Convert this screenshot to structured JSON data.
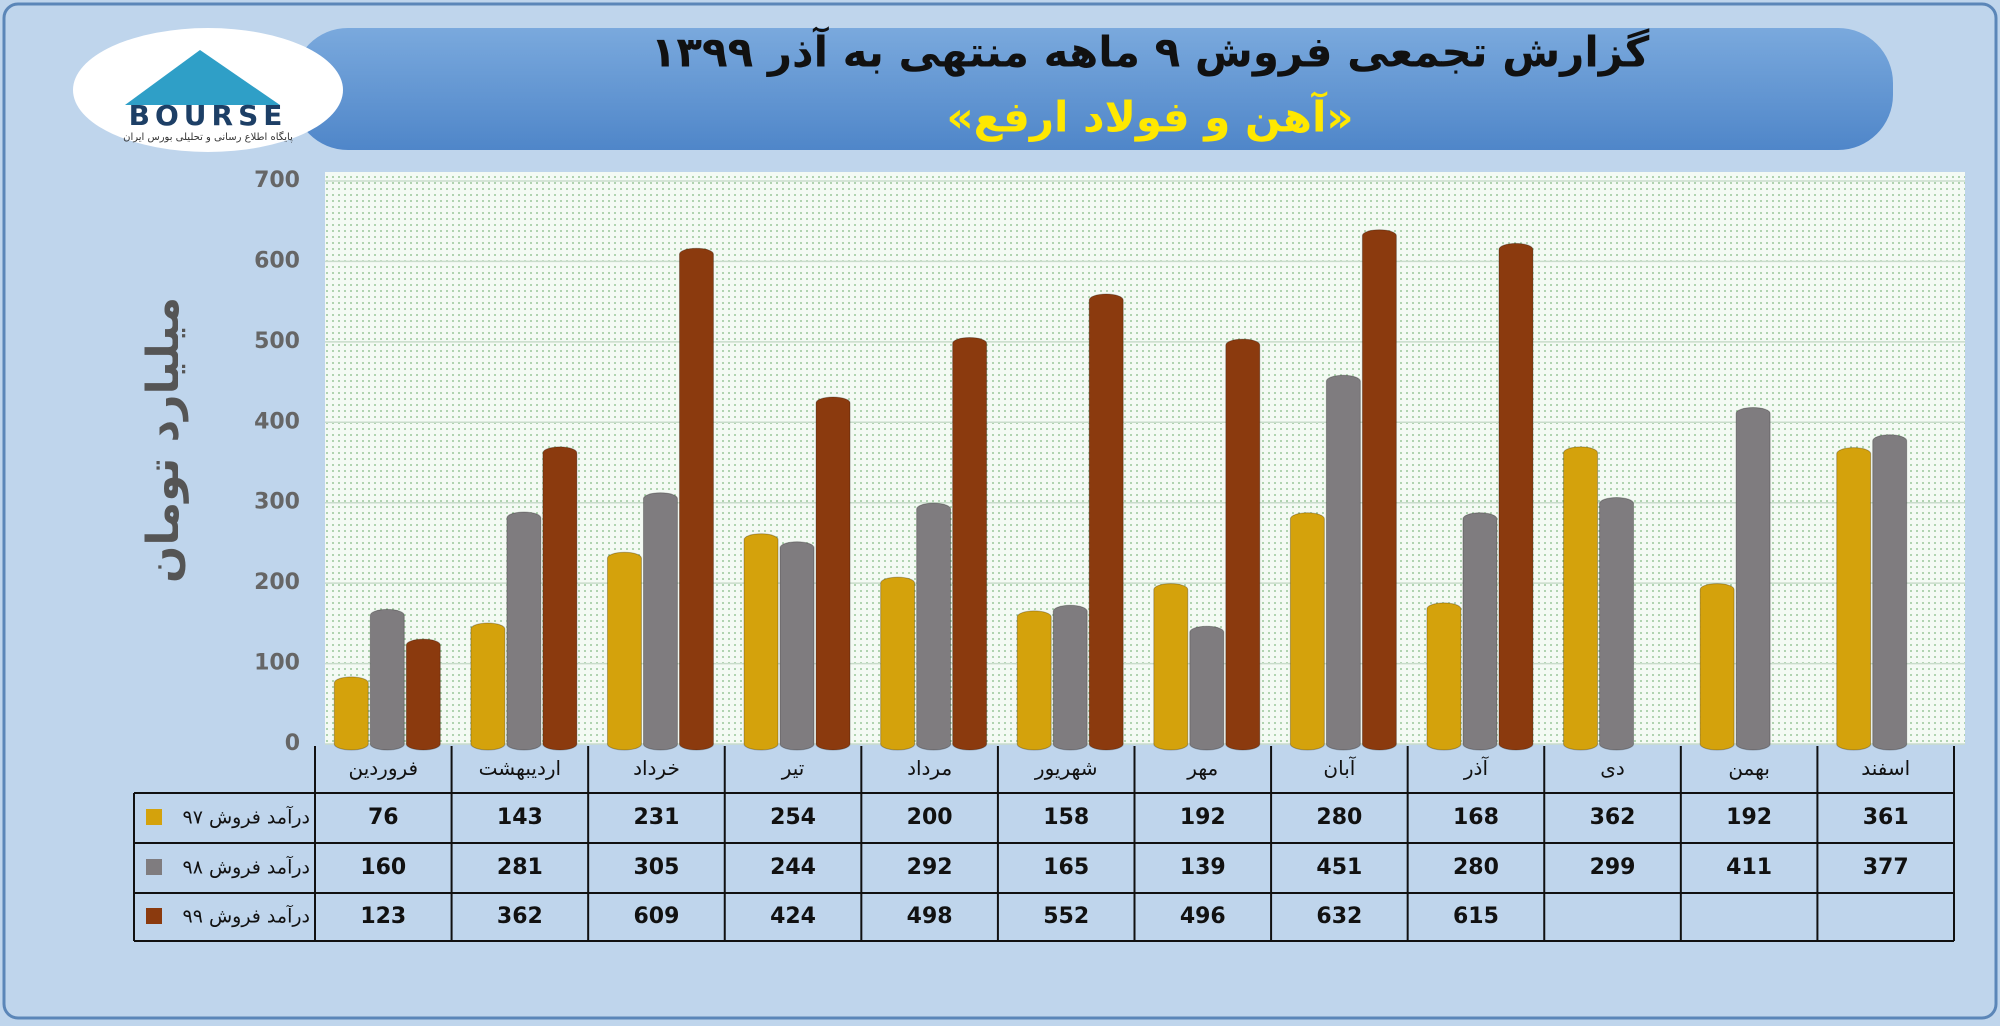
{
  "chart_data": {
    "type": "bar",
    "title": "گزارش تجمعی فروش ۹ ماهه منتهی به آذر ۱۳۹۹",
    "subtitle": "«آهن و فولاد ارفع»",
    "logo": {
      "name": "BOURSE",
      "tagline": "پایگاه اطلاع رسانی و تحلیلی بورس ایران"
    },
    "y_label": "میلیارد تومان",
    "categories": [
      "فروردین",
      "اردیبهشت",
      "خرداد",
      "تیر",
      "مرداد",
      "شهریور",
      "مهر",
      "آبان",
      "آذر",
      "دی",
      "بهمن",
      "اسفند"
    ],
    "series": [
      {
        "name": "درآمد فروش ۹۷",
        "color": "#d4a20c",
        "values": [
          76,
          143,
          231,
          254,
          200,
          158,
          192,
          280,
          168,
          362,
          192,
          361
        ]
      },
      {
        "name": "درآمد فروش ۹۸",
        "color": "#7f7c7f",
        "values": [
          160,
          281,
          305,
          244,
          292,
          165,
          139,
          451,
          280,
          299,
          411,
          377
        ]
      },
      {
        "name": "درآمد فروش ۹۹",
        "color": "#8b3a0e",
        "values": [
          123,
          362,
          609,
          424,
          498,
          552,
          496,
          632,
          615,
          null,
          null,
          null
        ]
      }
    ],
    "ylim": [
      0,
      700
    ],
    "yticks": [
      0,
      100,
      200,
      300,
      400,
      500,
      600,
      700
    ],
    "grid": true
  }
}
